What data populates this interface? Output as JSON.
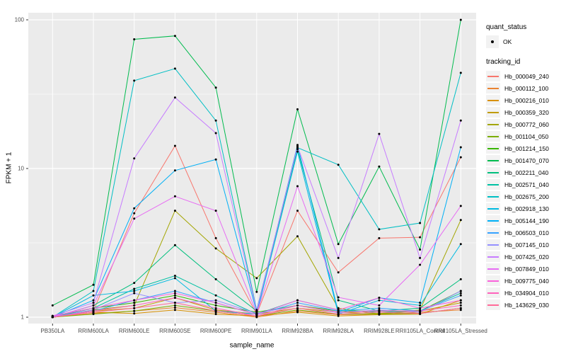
{
  "figure": {
    "background": "#FFFFFF",
    "panel_background": "#EBEBEB",
    "grid_color": "#FFFFFF",
    "tick_color": "#333333",
    "tick_label_color": "#4D4D4D",
    "point_color": "#000000"
  },
  "legend": {
    "quant_title": "quant_status",
    "quant_value": "OK",
    "quant_symbol": "point-icon",
    "tracking_title": "tracking_id"
  },
  "axes": {
    "x_title": "sample_name",
    "y_title": "FPKM + 1",
    "y_tick_labels": [
      "1",
      "10",
      "100"
    ]
  },
  "chart_data": {
    "type": "line",
    "title": "",
    "xlabel": "sample_name",
    "ylabel": "FPKM + 1",
    "y_scale": "log10",
    "ylim": [
      1,
      120
    ],
    "y_major_ticks": [
      1,
      10,
      100
    ],
    "y_minor_ticks": [
      3.162,
      31.623
    ],
    "grid": true,
    "legend_position": "right",
    "points": "black dot at every vertex (quant_status = OK)",
    "categories": [
      "PB350LA",
      "RRIM600LA",
      "RRIM600LE",
      "RRIM600SE",
      "RRIM600PE",
      "RRIM901LA",
      "RRIM928BA",
      "RRIM928LA",
      "RRIM928LE",
      "RRII105LA_Control",
      "RRII105LA_Stressed"
    ],
    "series": [
      {
        "name": "Hb_000049_240",
        "color": "#F8766D",
        "values": [
          1.0,
          1.1,
          5.0,
          14.2,
          3.4,
          1.05,
          5.2,
          2.0,
          3.4,
          3.45,
          11.9
        ]
      },
      {
        "name": "Hb_000112_100",
        "color": "#EA8331",
        "values": [
          1.0,
          1.06,
          1.1,
          1.16,
          1.08,
          1.0,
          1.1,
          1.04,
          1.05,
          1.08,
          1.12
        ]
      },
      {
        "name": "Hb_000216_010",
        "color": "#D89000",
        "values": [
          1.0,
          1.08,
          1.06,
          1.12,
          1.05,
          1.02,
          1.08,
          1.02,
          1.04,
          1.05,
          1.3
        ]
      },
      {
        "name": "Hb_000359_320",
        "color": "#C09B00",
        "values": [
          1.02,
          1.1,
          1.15,
          1.35,
          1.12,
          1.05,
          1.15,
          1.08,
          1.06,
          1.1,
          1.25
        ]
      },
      {
        "name": "Hb_000772_060",
        "color": "#A3A500",
        "values": [
          1.0,
          1.12,
          1.2,
          5.2,
          2.9,
          1.83,
          3.5,
          1.15,
          1.05,
          1.12,
          4.5
        ]
      },
      {
        "name": "Hb_001104_050",
        "color": "#7CAE00",
        "values": [
          1.0,
          1.05,
          1.1,
          1.2,
          1.1,
          1.02,
          1.12,
          1.05,
          1.05,
          1.06,
          1.15
        ]
      },
      {
        "name": "Hb_001214_150",
        "color": "#39B600",
        "values": [
          1.02,
          1.15,
          1.25,
          1.4,
          1.2,
          1.08,
          1.2,
          1.1,
          1.1,
          1.1,
          1.5
        ]
      },
      {
        "name": "Hb_001470_070",
        "color": "#00BB4E",
        "values": [
          1.2,
          1.65,
          74,
          78,
          35,
          1.48,
          25,
          3.1,
          10.3,
          2.85,
          100
        ]
      },
      {
        "name": "Hb_002211_040",
        "color": "#00BF7D",
        "values": [
          1.0,
          1.2,
          1.7,
          3.05,
          1.8,
          1.1,
          13.5,
          1.3,
          1.1,
          1.15,
          1.8
        ]
      },
      {
        "name": "Hb_002571_040",
        "color": "#00C1A3",
        "values": [
          1.0,
          1.15,
          1.55,
          1.9,
          1.4,
          1.05,
          1.3,
          1.12,
          1.08,
          1.1,
          1.45
        ]
      },
      {
        "name": "Hb_002675_200",
        "color": "#00BFC4",
        "values": [
          1.0,
          1.5,
          39,
          47,
          21,
          1.12,
          13.8,
          10.6,
          3.9,
          4.3,
          44
        ]
      },
      {
        "name": "Hb_002918_130",
        "color": "#00BAE0",
        "values": [
          1.0,
          1.4,
          1.5,
          1.83,
          1.1,
          1.05,
          13.0,
          1.05,
          1.3,
          1.2,
          3.1
        ]
      },
      {
        "name": "Hb_005144_190",
        "color": "#00B0F6",
        "values": [
          1.0,
          1.3,
          5.4,
          9.7,
          11.5,
          1.08,
          14.4,
          1.08,
          1.35,
          1.25,
          13.9
        ]
      },
      {
        "name": "Hb_006503_010",
        "color": "#35A2FF",
        "values": [
          1.0,
          1.1,
          1.3,
          1.5,
          1.25,
          1.04,
          1.25,
          1.1,
          1.15,
          1.1,
          1.4
        ]
      },
      {
        "name": "Hb_007145_010",
        "color": "#9590FF",
        "values": [
          1.0,
          1.12,
          1.45,
          1.25,
          1.3,
          1.06,
          1.2,
          1.07,
          1.12,
          1.08,
          1.5
        ]
      },
      {
        "name": "Hb_007425_020",
        "color": "#C77CFF",
        "values": [
          1.02,
          1.25,
          11.7,
          30,
          17.3,
          1.1,
          14.1,
          2.5,
          17.1,
          2.5,
          21
        ]
      },
      {
        "name": "Hb_007849_010",
        "color": "#E76BF3",
        "values": [
          1.0,
          1.2,
          4.6,
          6.5,
          5.2,
          1.06,
          7.6,
          1.36,
          1.2,
          2.25,
          5.6
        ]
      },
      {
        "name": "Hb_009775_040",
        "color": "#FA62DB",
        "values": [
          1.02,
          1.15,
          1.3,
          1.45,
          1.25,
          1.04,
          1.3,
          1.12,
          1.35,
          1.15,
          1.3
        ]
      },
      {
        "name": "Hb_034904_010",
        "color": "#FF62BC",
        "values": [
          1.0,
          1.1,
          1.2,
          1.35,
          1.15,
          1.02,
          1.2,
          1.08,
          1.1,
          1.1,
          1.2
        ]
      },
      {
        "name": "Hb_143629_030",
        "color": "#FF6A98",
        "values": [
          1.0,
          1.08,
          1.15,
          1.25,
          1.1,
          1.02,
          1.15,
          1.05,
          1.08,
          1.06,
          1.15
        ]
      }
    ]
  }
}
